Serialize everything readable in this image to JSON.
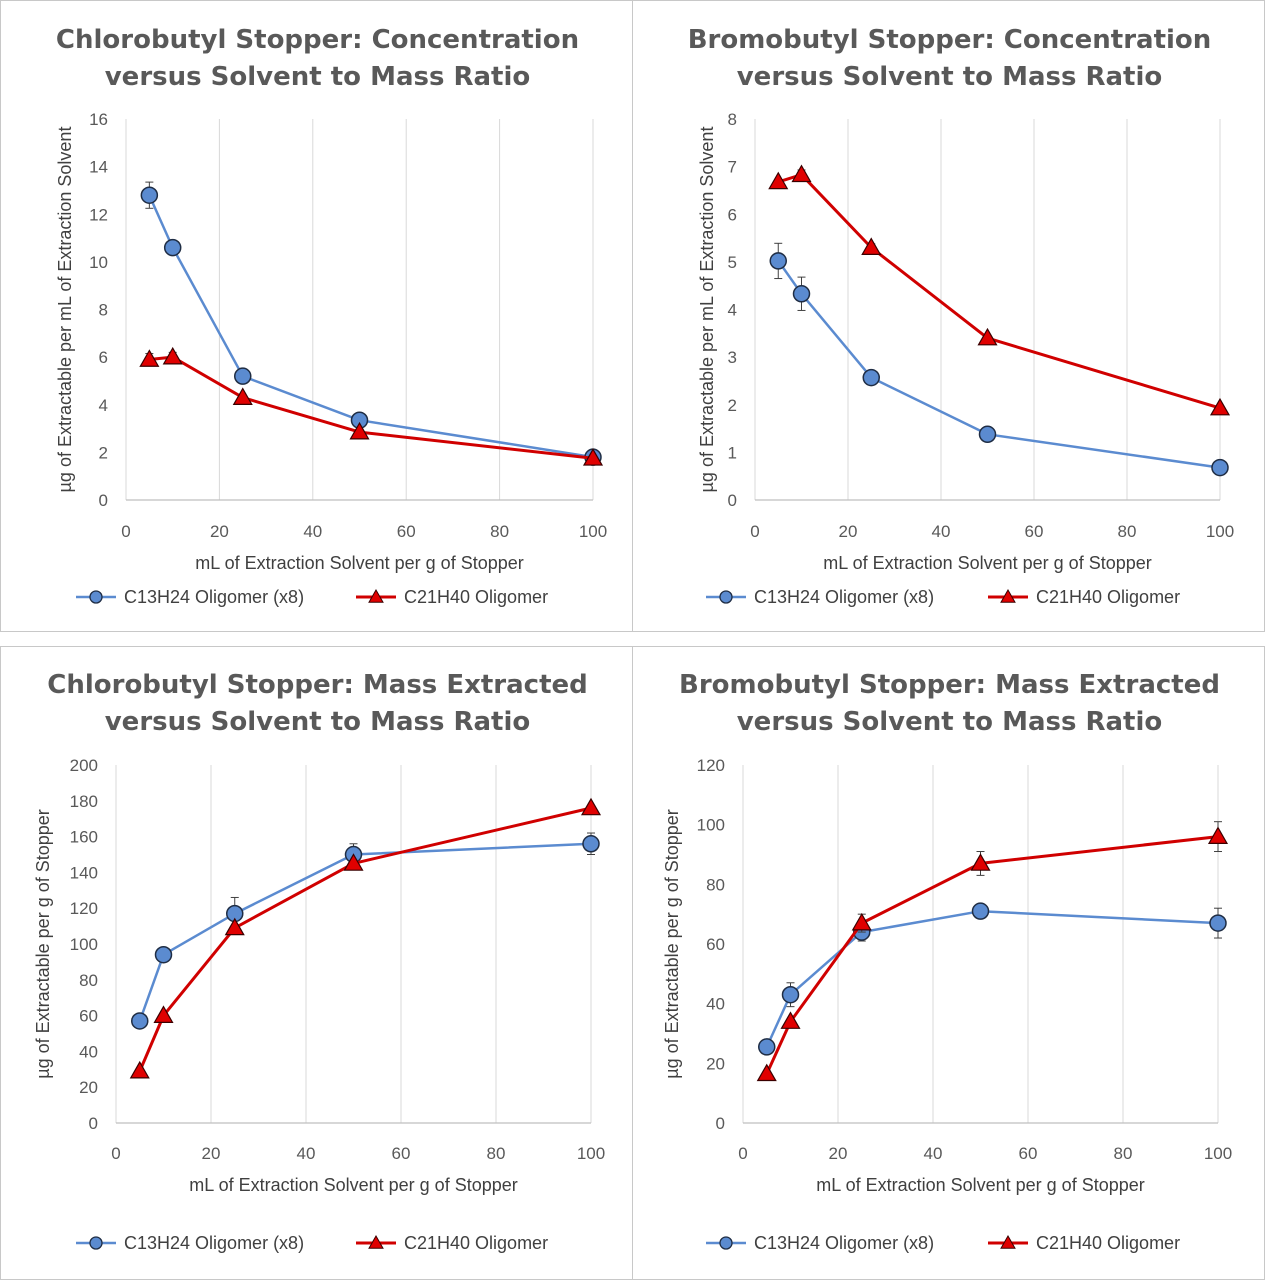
{
  "chart_data": [
    {
      "type": "line",
      "title": [
        "Chlorobutyl Stopper: Concentration",
        "versus Solvent to Mass Ratio"
      ],
      "xlabel": "mL of Extraction Solvent per g of Stopper",
      "ylabel": "µg of Extractable per mL of Extraction Solvent",
      "xlim": [
        0,
        100
      ],
      "ylim": [
        0,
        16
      ],
      "xticks": [
        0,
        20,
        40,
        60,
        80,
        100
      ],
      "yticks": [
        0,
        2,
        4,
        6,
        8,
        10,
        12,
        14,
        16
      ],
      "grid": "vertical",
      "legend": "bottom",
      "series": [
        {
          "name": "C13H24 Oligomer (x8)",
          "marker": "circle",
          "color": "#4472C4",
          "line_color": "#5B8BD0",
          "x": [
            5,
            10,
            25,
            50,
            100
          ],
          "y": [
            12.8,
            10.6,
            5.2,
            3.35,
            1.8
          ],
          "err": [
            0.55,
            0,
            0,
            0.2,
            0.1
          ]
        },
        {
          "name": "C21H40 Oligomer",
          "marker": "triangle",
          "color": "#E00000",
          "line_color": "#D00000",
          "x": [
            5,
            10,
            25,
            50,
            100
          ],
          "y": [
            5.9,
            6.0,
            4.3,
            2.85,
            1.75
          ],
          "err": [
            0.25,
            0.2,
            0,
            0.1,
            0
          ]
        }
      ]
    },
    {
      "type": "line",
      "title": [
        "Bromobutyl Stopper: Concentration",
        "versus Solvent to Mass Ratio"
      ],
      "xlabel": "mL of Extraction Solvent per g of Stopper",
      "ylabel": "µg of Extractable per mL of Extraction Solvent",
      "xlim": [
        0,
        100
      ],
      "ylim": [
        0,
        8
      ],
      "xticks": [
        0,
        20,
        40,
        60,
        80,
        100
      ],
      "yticks": [
        0,
        1,
        2,
        3,
        4,
        5,
        6,
        7,
        8
      ],
      "grid": "vertical",
      "legend": "bottom",
      "series": [
        {
          "name": "C13H24 Oligomer (x8)",
          "marker": "circle",
          "color": "#4472C4",
          "line_color": "#5B8BD0",
          "x": [
            5,
            10,
            25,
            50,
            100
          ],
          "y": [
            5.02,
            4.33,
            2.57,
            1.38,
            0.68
          ],
          "err": [
            0.37,
            0.35,
            0,
            0,
            0
          ]
        },
        {
          "name": "C21H40 Oligomer",
          "marker": "triangle",
          "color": "#E00000",
          "line_color": "#D00000",
          "x": [
            5,
            10,
            25,
            50,
            100
          ],
          "y": [
            6.68,
            6.83,
            5.3,
            3.4,
            1.93
          ],
          "err": [
            0.05,
            0.1,
            0.08,
            0,
            0
          ]
        }
      ]
    },
    {
      "type": "line",
      "title": [
        "Chlorobutyl Stopper: Mass Extracted",
        "versus Solvent to Mass Ratio"
      ],
      "xlabel": "mL of Extraction Solvent per g of Stopper",
      "ylabel": "µg of Extractable per g of Stopper",
      "xlim": [
        0,
        100
      ],
      "ylim": [
        0,
        200
      ],
      "xticks": [
        0,
        20,
        40,
        60,
        80,
        100
      ],
      "yticks": [
        0,
        20,
        40,
        60,
        80,
        100,
        120,
        140,
        160,
        180,
        200
      ],
      "grid": "vertical",
      "legend": "bottom",
      "series": [
        {
          "name": "C13H24 Oligomer (x8)",
          "marker": "circle",
          "color": "#4472C4",
          "line_color": "#5B8BD0",
          "x": [
            5,
            10,
            25,
            50,
            100
          ],
          "y": [
            57,
            94,
            117,
            150,
            156
          ],
          "err": [
            0,
            0,
            9,
            6,
            6
          ]
        },
        {
          "name": "C21H40 Oligomer",
          "marker": "triangle",
          "color": "#E00000",
          "line_color": "#D00000",
          "x": [
            5,
            10,
            25,
            50,
            100
          ],
          "y": [
            29,
            60,
            109,
            145,
            176
          ],
          "err": [
            0,
            0,
            0,
            0,
            0
          ]
        }
      ]
    },
    {
      "type": "line",
      "title": [
        "Bromobutyl Stopper: Mass Extracted",
        "versus Solvent to Mass Ratio"
      ],
      "xlabel": "mL of Extraction Solvent per g of Stopper",
      "ylabel": "µg of Extractable per g of Stopper",
      "xlim": [
        0,
        100
      ],
      "ylim": [
        0,
        120
      ],
      "xticks": [
        0,
        20,
        40,
        60,
        80,
        100
      ],
      "yticks": [
        0,
        20,
        40,
        60,
        80,
        100,
        120
      ],
      "grid": "vertical",
      "legend": "bottom",
      "series": [
        {
          "name": "C13H24 Oligomer (x8)",
          "marker": "circle",
          "color": "#4472C4",
          "line_color": "#5B8BD0",
          "x": [
            5,
            10,
            25,
            50,
            100
          ],
          "y": [
            25.5,
            43,
            64,
            71,
            67
          ],
          "err": [
            0,
            4,
            3,
            0,
            5
          ]
        },
        {
          "name": "C21H40 Oligomer",
          "marker": "triangle",
          "color": "#E00000",
          "line_color": "#D00000",
          "x": [
            5,
            10,
            25,
            50,
            100
          ],
          "y": [
            16.5,
            34,
            67,
            87,
            96
          ],
          "err": [
            0,
            0,
            3,
            4,
            5
          ]
        }
      ]
    }
  ]
}
